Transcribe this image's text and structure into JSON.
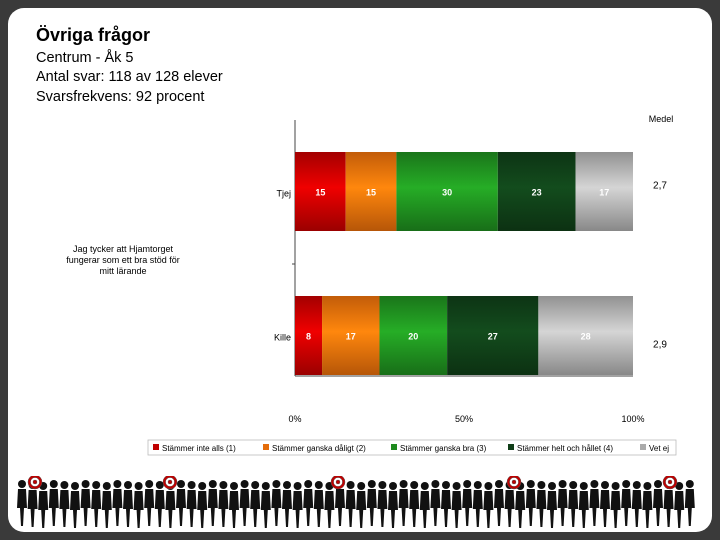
{
  "header": {
    "title": "Övriga frågor",
    "line1": "Centrum - Åk 5",
    "line2": "Antal svar: 118 av 128 elever",
    "line3": "Svarsfrekvens: 92 procent"
  },
  "chart_data": {
    "type": "bar",
    "orientation": "horizontal-stacked-100",
    "question": "Jag tycker att Hjamtorget fungerar som ett bra stöd för mitt lärande",
    "categories": [
      "Tjej",
      "Kille"
    ],
    "series": [
      {
        "name": "Stämmer inte alls (1)",
        "color": "#c00000",
        "values": [
          15,
          8
        ]
      },
      {
        "name": "Stämmer ganska dåligt (2)",
        "color": "#e46c0a",
        "values": [
          15,
          17
        ]
      },
      {
        "name": "Stämmer ganska bra (3)",
        "color": "#1e8a1e",
        "values": [
          30,
          20
        ]
      },
      {
        "name": "Stämmer helt och hållet (4)",
        "color": "#0f3d17",
        "values": [
          23,
          27
        ]
      },
      {
        "name": "Vet ej",
        "color": "#aaaaaa",
        "values": [
          17,
          28
        ]
      }
    ],
    "medel_label": "Medel",
    "medel": [
      "2,7",
      "2,9"
    ],
    "xticks": [
      "0%",
      "50%",
      "100%"
    ],
    "xlim": [
      0,
      100
    ]
  }
}
